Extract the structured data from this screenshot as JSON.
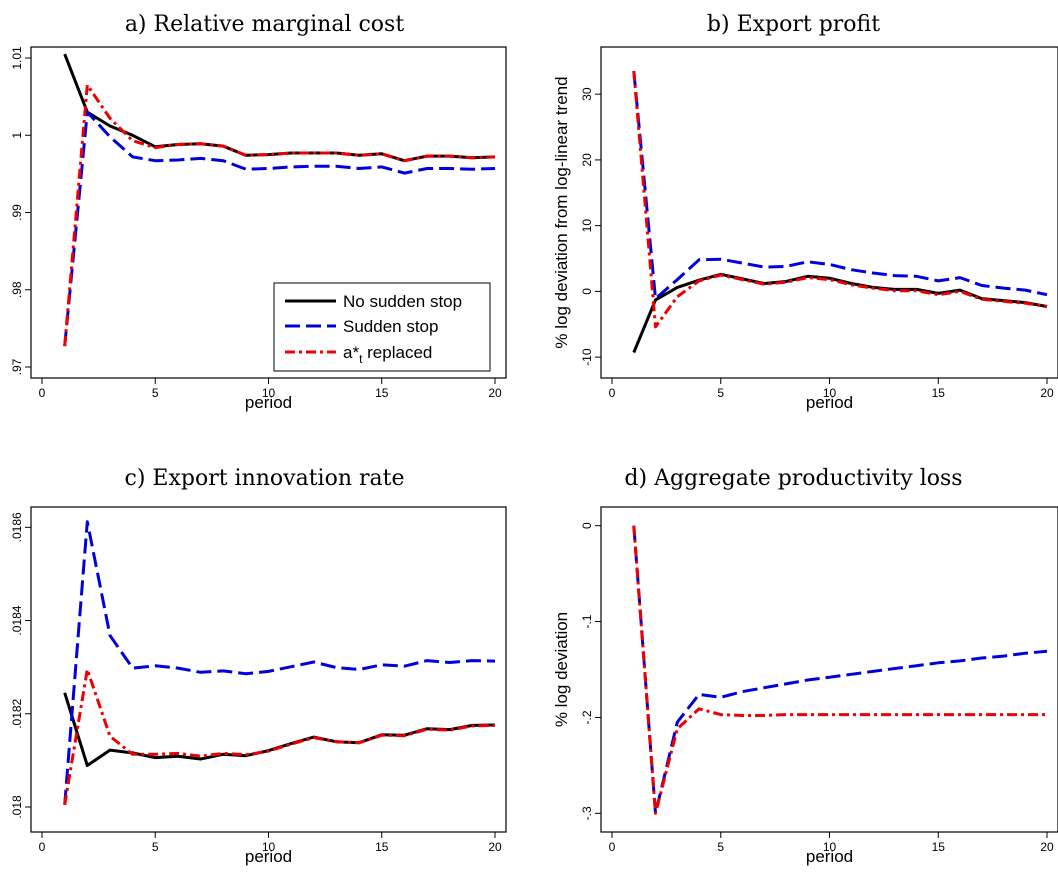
{
  "x_label": "period",
  "legend": {
    "no_sudden_stop": "No sudden stop",
    "sudden_stop": "Sudden stop",
    "replaced_main": "a*",
    "replaced_sub": "t",
    "replaced_rest": " replaced"
  },
  "colors": {
    "no_sudden_stop": "#000000",
    "sudden_stop": "#0000dd",
    "replaced": "#ee0000"
  },
  "chart_data": [
    {
      "type": "line",
      "title": "a) Relative marginal cost",
      "ylabel": "",
      "xticks": [
        0,
        5,
        10,
        15,
        20
      ],
      "yticks": [
        0.97,
        0.98,
        0.99,
        1,
        1.01
      ],
      "ytick_labels": [
        ".97",
        ".98",
        ".99",
        "1",
        "1.01"
      ],
      "x": [
        1,
        2,
        3,
        4,
        5,
        6,
        7,
        8,
        9,
        10,
        11,
        12,
        13,
        14,
        15,
        16,
        17,
        18,
        19,
        20
      ],
      "series": [
        {
          "name": "No sudden stop",
          "values": [
            1.0105,
            1.003,
            1.0012,
            1.0,
            0.9985,
            0.9988,
            0.9989,
            0.9986,
            0.9974,
            0.9975,
            0.9977,
            0.9977,
            0.9977,
            0.9974,
            0.9976,
            0.9967,
            0.9973,
            0.9973,
            0.9971,
            0.9972
          ]
        },
        {
          "name": "Sudden stop",
          "values": [
            0.9727,
            1.003,
            0.9998,
            0.9972,
            0.9967,
            0.9968,
            0.997,
            0.9967,
            0.9956,
            0.9957,
            0.9959,
            0.996,
            0.996,
            0.9957,
            0.9959,
            0.9951,
            0.9957,
            0.9957,
            0.9956,
            0.9957
          ]
        },
        {
          "name": "a*t replaced",
          "values": [
            0.9727,
            1.0065,
            1.0022,
            0.9993,
            0.9984,
            0.9988,
            0.9989,
            0.9986,
            0.9974,
            0.9975,
            0.9977,
            0.9977,
            0.9977,
            0.9974,
            0.9976,
            0.9967,
            0.9973,
            0.9973,
            0.9971,
            0.9972
          ]
        }
      ]
    },
    {
      "type": "line",
      "title": "b) Export profit",
      "ylabel": "% log deviation from log-linear trend",
      "xticks": [
        0,
        5,
        10,
        15,
        20
      ],
      "yticks": [
        -10,
        0,
        10,
        20,
        30
      ],
      "ytick_labels": [
        "-10",
        "0",
        "10",
        "20",
        "30"
      ],
      "x": [
        1,
        2,
        3,
        4,
        5,
        6,
        7,
        8,
        9,
        10,
        11,
        12,
        13,
        14,
        15,
        16,
        17,
        18,
        19,
        20
      ],
      "series": [
        {
          "name": "No sudden stop",
          "values": [
            -9.3,
            -1.3,
            0.6,
            1.7,
            2.6,
            1.9,
            1.2,
            1.5,
            2.3,
            2.0,
            1.2,
            0.6,
            0.3,
            0.3,
            -0.3,
            0.2,
            -1.1,
            -1.4,
            -1.7,
            -2.3
          ]
        },
        {
          "name": "Sudden stop",
          "values": [
            33.5,
            -1.1,
            1.8,
            4.8,
            4.9,
            4.3,
            3.7,
            3.8,
            4.5,
            4.1,
            3.3,
            2.8,
            2.4,
            2.3,
            1.6,
            2.1,
            0.9,
            0.5,
            0.2,
            -0.5
          ]
        },
        {
          "name": "a*t replaced",
          "values": [
            33.5,
            -5.4,
            -0.8,
            1.6,
            2.5,
            1.8,
            1.1,
            1.4,
            2.1,
            1.8,
            1.0,
            0.5,
            0.1,
            0.1,
            -0.5,
            0.0,
            -1.2,
            -1.5,
            -1.8,
            -2.3
          ]
        }
      ]
    },
    {
      "type": "line",
      "title": "c) Export innovation rate",
      "ylabel": "",
      "xticks": [
        0,
        5,
        10,
        15,
        20
      ],
      "yticks": [
        0.018,
        0.0182,
        0.0184,
        0.0186
      ],
      "ytick_labels": [
        ".018",
        ".0182",
        ".0184",
        ".0186"
      ],
      "x": [
        1,
        2,
        3,
        4,
        5,
        6,
        7,
        8,
        9,
        10,
        11,
        12,
        13,
        14,
        15,
        16,
        17,
        18,
        19,
        20
      ],
      "series": [
        {
          "name": "No sudden stop",
          "values": [
            0.018245,
            0.018089,
            0.018122,
            0.018116,
            0.018106,
            0.018109,
            0.018103,
            0.018113,
            0.01811,
            0.018121,
            0.018136,
            0.01815,
            0.01814,
            0.018138,
            0.018155,
            0.018154,
            0.018168,
            0.018166,
            0.018175,
            0.018176
          ]
        },
        {
          "name": "Sudden stop",
          "values": [
            0.018005,
            0.018612,
            0.018368,
            0.018298,
            0.018303,
            0.018298,
            0.018289,
            0.018292,
            0.018286,
            0.018291,
            0.018301,
            0.018311,
            0.018299,
            0.018295,
            0.018305,
            0.018302,
            0.018314,
            0.01831,
            0.018314,
            0.018313
          ]
        },
        {
          "name": "a*t replaced",
          "values": [
            0.018005,
            0.018295,
            0.018152,
            0.018113,
            0.018113,
            0.018115,
            0.018109,
            0.018115,
            0.018112,
            0.01812,
            0.018135,
            0.018149,
            0.01814,
            0.018138,
            0.018154,
            0.018153,
            0.018167,
            0.018165,
            0.018174,
            0.018175
          ]
        }
      ]
    },
    {
      "type": "line",
      "title": "d) Aggregate productivity loss",
      "ylabel": "% log deviation",
      "xticks": [
        0,
        5,
        10,
        15,
        20
      ],
      "yticks": [
        -0.3,
        -0.2,
        -0.1,
        0
      ],
      "ytick_labels": [
        "-.3",
        "-.2",
        "-.1",
        "0"
      ],
      "x": [
        1,
        2,
        3,
        4,
        5,
        6,
        7,
        8,
        9,
        10,
        11,
        12,
        13,
        14,
        15,
        16,
        17,
        18,
        19,
        20
      ],
      "series": [
        {
          "name": "Sudden stop",
          "values": [
            0,
            -0.3,
            -0.205,
            -0.176,
            -0.179,
            -0.173,
            -0.169,
            -0.165,
            -0.161,
            -0.158,
            -0.155,
            -0.152,
            -0.149,
            -0.146,
            -0.143,
            -0.141,
            -0.138,
            -0.136,
            -0.133,
            -0.131
          ]
        },
        {
          "name": "a*t replaced",
          "values": [
            0,
            -0.3,
            -0.212,
            -0.191,
            -0.197,
            -0.198,
            -0.198,
            -0.197,
            -0.197,
            -0.197,
            -0.197,
            -0.197,
            -0.197,
            -0.197,
            -0.197,
            -0.197,
            -0.197,
            -0.197,
            -0.197,
            -0.197
          ]
        }
      ]
    }
  ]
}
